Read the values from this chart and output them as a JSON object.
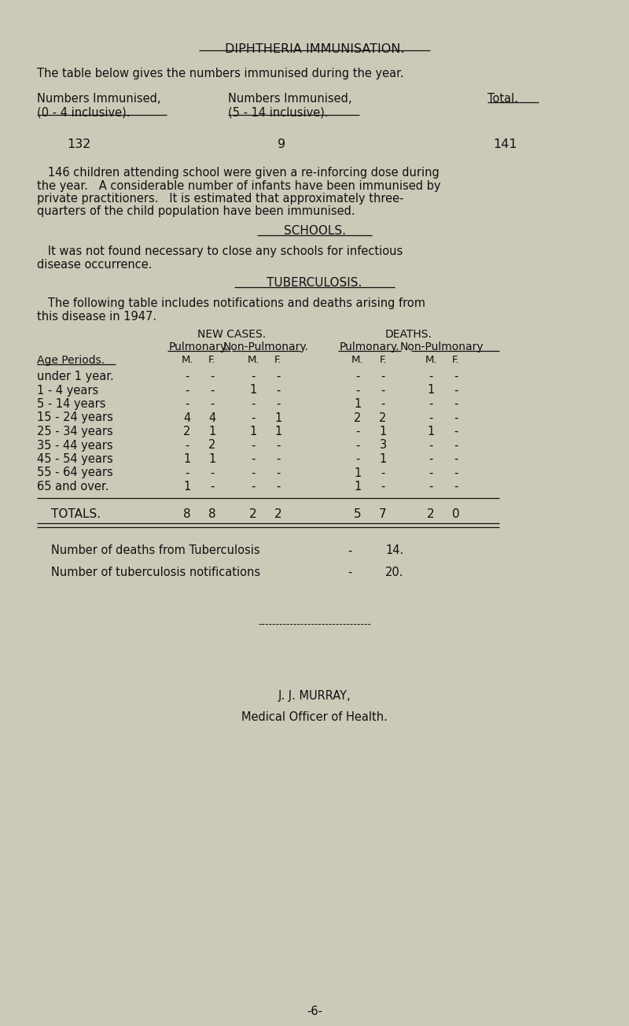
{
  "bg_color": "#ccc9b8",
  "text_color": "#111111",
  "page_title": "DIPHTHERIA IMMUNISATION.",
  "intro_text": "The table below gives the numbers immunised during the year.",
  "col1_header1": "Numbers Immunised,",
  "col1_header2": "(0 - 4 inclusive).",
  "col2_header1": "Numbers Immunised,",
  "col2_header2": "(5 - 14 inclusive).",
  "col3_header1": "Total.",
  "val1": "132",
  "val2": "9",
  "val3": "141",
  "para1_lines": [
    "   146 children attending school were given a re-inforcing dose during",
    "the year.   A considerable number of infants have been immunised by",
    "private practitioners.   It is estimated that approximately three-",
    "quarters of the child population have been immunised."
  ],
  "schools_heading": "SCHOOLS.",
  "schools_text1": "   It was not found necessary to close any schools for infectious",
  "schools_text2": "disease occurrence.",
  "tb_heading": "TUBERCULOSIS.",
  "tb_intro1": "   The following table includes notifications and deaths arising from",
  "tb_intro2": "this disease in 1947.",
  "table_main_header_new": "NEW CASES.",
  "table_main_header_deaths": "DEATHS.",
  "table_age_header": "Age Periods.",
  "age_periods": [
    "under 1 year.",
    "1 - 4 years",
    "5 - 14 years",
    "15 - 24 years",
    "25 - 34 years",
    "35 - 44 years",
    "45 - 54 years",
    "55 - 64 years",
    "65 and over."
  ],
  "new_pulm_m": [
    "-",
    "-",
    "-",
    "4",
    "2",
    "-",
    "1",
    "-",
    "1"
  ],
  "new_pulm_f": [
    "-",
    "-",
    "-",
    "4",
    "1",
    "2",
    "1",
    "-",
    "-"
  ],
  "new_nonpulm_m": [
    "-",
    "1",
    "-",
    "-",
    "1",
    "-",
    "-",
    "-",
    "-"
  ],
  "new_nonpulm_f": [
    "-",
    "-",
    "-",
    "1",
    "1",
    "-",
    "-",
    "-",
    "-"
  ],
  "death_pulm_m": [
    "-",
    "-",
    "1",
    "2",
    "-",
    "-",
    "-",
    "1",
    "1"
  ],
  "death_pulm_f": [
    "-",
    "-",
    "-",
    "2",
    "1",
    "3",
    "1",
    "-",
    "-"
  ],
  "death_nonpulm_m": [
    "-",
    "1",
    "-",
    "-",
    "1",
    "-",
    "-",
    "-",
    "-"
  ],
  "death_nonpulm_f": [
    "-",
    "-",
    "-",
    "-",
    "-",
    "-",
    "-",
    "-",
    "-"
  ],
  "totals_label": "TOTALS.",
  "tot_new_pulm_m": "8",
  "tot_new_pulm_f": "8",
  "tot_new_nonpulm_m": "2",
  "tot_new_nonpulm_f": "2",
  "tot_death_pulm_m": "5",
  "tot_death_pulm_f": "7",
  "tot_death_nonpulm_m": "2",
  "tot_death_nonpulm_f": "0",
  "deaths_note_left": "Number of deaths from Tuberculosis",
  "deaths_note_dash": "-",
  "deaths_note_right": "14.",
  "notif_note_left": "Number of tuberculosis notifications",
  "notif_note_dash": "-",
  "notif_note_right": "20.",
  "signature": "J. J. MURRAY,",
  "title_sig": "Medical Officer of Health.",
  "page_num": "-6-"
}
